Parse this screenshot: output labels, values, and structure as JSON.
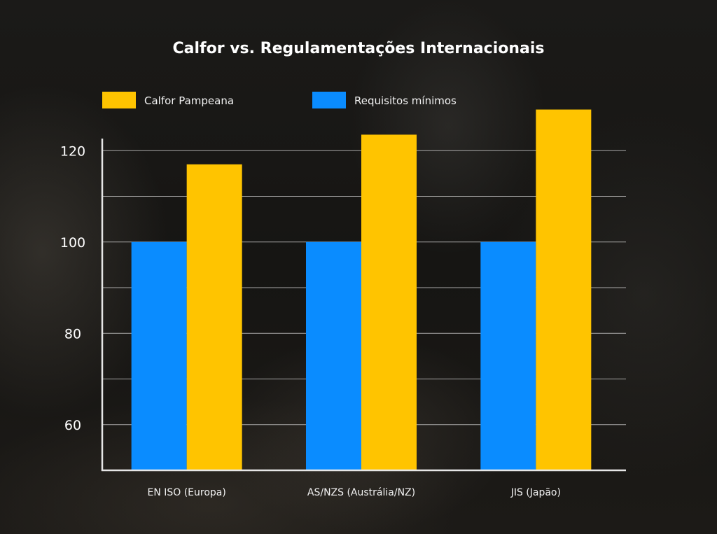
{
  "chart_data": {
    "type": "bar",
    "title": "Calfor vs. Regulamentações Internacionais",
    "categories": [
      "EN ISO (Europa)",
      "AS/NZS (Austrália/NZ)",
      "JIS (Japão)"
    ],
    "series": [
      {
        "name": "Requisitos mínimos",
        "values": [
          100,
          100,
          100
        ],
        "color": "#0a8cff"
      },
      {
        "name": "Calfor Pampeana",
        "values": [
          117,
          123.5,
          129
        ],
        "color": "#ffc400"
      }
    ],
    "legend_order": [
      1,
      0
    ],
    "legend_position": "top-left",
    "xlabel": "",
    "ylabel": "",
    "ylim": [
      50,
      130
    ],
    "yticks": [
      60,
      80,
      100,
      120
    ],
    "minor_gridlines": [
      70,
      90,
      110
    ],
    "grid": true
  }
}
